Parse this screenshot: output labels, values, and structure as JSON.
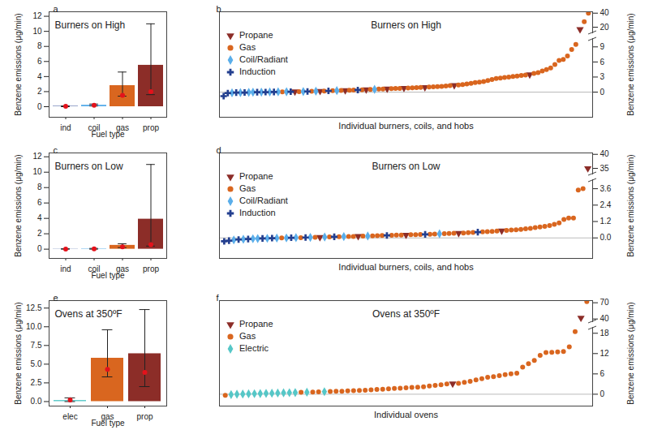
{
  "chart_data": [
    {
      "panel": "a",
      "type": "bar",
      "title": "Burners on High",
      "xlabel": "Fuel type",
      "ylabel": "Benzene emissions (μg/min)",
      "categories": [
        "ind",
        "coil",
        "gas",
        "prop"
      ],
      "values": [
        0.05,
        0.2,
        2.8,
        5.5
      ],
      "colors": [
        "#233f8f",
        "#5aaeea",
        "#d9661f",
        "#8c2d28"
      ],
      "error_low": [
        0,
        0.1,
        1.4,
        1.6
      ],
      "error_high": [
        0.1,
        0.35,
        4.6,
        11.0
      ],
      "point_values": [
        0.05,
        0.2,
        1.5,
        2.0
      ],
      "point_color": "#e3121b",
      "ylim": [
        -1.4,
        12.6
      ],
      "yticks": [
        0,
        2,
        4,
        6,
        8,
        10,
        12
      ]
    },
    {
      "panel": "b",
      "type": "scatter",
      "title": "Burners on High",
      "xlabel": "Individual burners, coils, and hobs",
      "ylabel": "Benzene emissions (μg/min)",
      "xlim": [
        0,
        89
      ],
      "tick_labels": "y",
      "legend": "upper left",
      "reference_line": 0,
      "y_segments": [
        {
          "ylim": [
            -5,
            10.5
          ],
          "yticks": [
            0,
            3,
            6,
            9
          ]
        },
        {
          "ylim": [
            12,
            42
          ],
          "yticks": [
            20,
            40
          ]
        }
      ],
      "series": [
        {
          "name": "Propane",
          "color": "#8c2d28",
          "marker": "triangle_down",
          "x": [
            18,
            24,
            30,
            35,
            40,
            44,
            49,
            56,
            74,
            86
          ],
          "values": [
            0.1,
            0.2,
            0.35,
            0.5,
            0.65,
            0.8,
            0.95,
            1.35,
            3.5,
            17
          ]
        },
        {
          "name": "Gas",
          "color": "#d9661f",
          "marker": "circle",
          "x": [
            15,
            19,
            22,
            25,
            27,
            29,
            31,
            32,
            34,
            36,
            38,
            39,
            41,
            42,
            43,
            45,
            46,
            47,
            48,
            50,
            51,
            52,
            53,
            54,
            55,
            57,
            58,
            59,
            60,
            61,
            62,
            63,
            64,
            65,
            66,
            67,
            68,
            69,
            70,
            71,
            72,
            73,
            75,
            76,
            77,
            78,
            79,
            80,
            81,
            82,
            83,
            84,
            85,
            87,
            88
          ],
          "values": [
            0.05,
            0.1,
            0.15,
            0.22,
            0.28,
            0.32,
            0.38,
            0.4,
            0.45,
            0.52,
            0.6,
            0.62,
            0.7,
            0.72,
            0.75,
            0.82,
            0.85,
            0.9,
            0.92,
            1.0,
            1.05,
            1.1,
            1.15,
            1.2,
            1.3,
            1.4,
            1.5,
            1.6,
            1.75,
            1.9,
            2.0,
            2.1,
            2.3,
            2.5,
            2.7,
            2.8,
            2.9,
            3.0,
            3.1,
            3.2,
            3.3,
            3.4,
            3.7,
            3.9,
            4.2,
            4.5,
            4.8,
            5.5,
            6.3,
            6.5,
            7.2,
            8.5,
            9.5,
            28,
            40
          ]
        },
        {
          "name": "Coil/Radiant",
          "color": "#5aaeea",
          "marker": "diamond",
          "x": [
            3,
            5,
            7,
            8,
            10,
            12,
            14,
            16,
            20,
            23,
            28,
            37
          ],
          "values": [
            -0.15,
            -0.1,
            -0.05,
            -0.03,
            0.0,
            0.02,
            0.05,
            0.07,
            0.12,
            0.17,
            0.3,
            0.55
          ]
        },
        {
          "name": "Induction",
          "color": "#233f8f",
          "marker": "plus",
          "x": [
            1,
            2,
            4,
            6,
            9,
            11,
            13,
            17,
            21,
            26,
            33
          ],
          "values": [
            -0.8,
            -0.2,
            -0.1,
            -0.08,
            -0.02,
            0.0,
            0.03,
            0.08,
            0.13,
            0.25,
            0.42
          ]
        }
      ]
    },
    {
      "panel": "c",
      "type": "bar",
      "title": "Burners on Low",
      "xlabel": "Fuel type",
      "ylabel": "Benzene emissions (μg/min)",
      "categories": [
        "ind",
        "coil",
        "gas",
        "prop"
      ],
      "values": [
        0.02,
        0.05,
        0.5,
        3.9
      ],
      "colors": [
        "#233f8f",
        "#5aaeea",
        "#d9661f",
        "#8c2d28"
      ],
      "error_low": [
        0,
        0,
        0.2,
        0.4
      ],
      "error_high": [
        0.05,
        0.1,
        0.7,
        11.0
      ],
      "point_values": [
        0.02,
        0.03,
        0.3,
        0.6
      ],
      "point_color": "#e3121b",
      "ylim": [
        -1.2,
        12.5
      ],
      "yticks": [
        0,
        2,
        4,
        6,
        8,
        10,
        12
      ]
    },
    {
      "panel": "d",
      "type": "scatter",
      "title": "Burners on Low",
      "xlabel": "Individual burners, coils, and hobs",
      "ylabel": "Benzene emissions (μg/min)",
      "xlim": [
        0,
        78
      ],
      "tick_labels": "y",
      "legend": "upper left",
      "reference_line": 0,
      "y_segments": [
        {
          "ylim": [
            -1.5,
            4.2
          ],
          "yticks": [
            {
              "value": 0,
              "label": "0.0"
            },
            1.2,
            2.4,
            3.6
          ]
        },
        {
          "ylim": [
            33,
            40.5
          ],
          "yticks": [
            35,
            40
          ]
        }
      ],
      "series": [
        {
          "name": "Propane",
          "color": "#8c2d28",
          "marker": "triangle_down",
          "x": [
            21,
            29,
            39,
            50,
            59,
            77
          ],
          "values": [
            0.05,
            0.12,
            0.22,
            0.35,
            0.52,
            35
          ]
        },
        {
          "name": "Gas",
          "color": "#d9661f",
          "marker": "circle",
          "x": [
            13,
            17,
            20,
            23,
            25,
            27,
            28,
            30,
            32,
            33,
            34,
            36,
            37,
            38,
            40,
            41,
            42,
            44,
            45,
            47,
            48,
            49,
            51,
            52,
            53,
            55,
            56,
            57,
            58,
            60,
            61,
            62,
            63,
            64,
            65,
            66,
            67,
            68,
            69,
            70,
            71,
            72,
            73,
            74,
            75,
            76
          ],
          "values": [
            0.0,
            0.02,
            0.05,
            0.07,
            0.09,
            0.1,
            0.11,
            0.13,
            0.15,
            0.16,
            0.17,
            0.19,
            0.2,
            0.21,
            0.23,
            0.24,
            0.25,
            0.27,
            0.28,
            0.31,
            0.32,
            0.34,
            0.36,
            0.38,
            0.4,
            0.44,
            0.46,
            0.48,
            0.5,
            0.55,
            0.58,
            0.6,
            0.63,
            0.66,
            0.7,
            0.75,
            0.8,
            0.85,
            0.9,
            1.0,
            1.1,
            1.35,
            1.45,
            1.45,
            3.5,
            3.6
          ]
        },
        {
          "name": "Coil/Radiant",
          "color": "#5aaeea",
          "marker": "diamond",
          "x": [
            3,
            5,
            7,
            8,
            10,
            12,
            14,
            16,
            19,
            22,
            26,
            31,
            46
          ],
          "values": [
            -0.15,
            -0.1,
            -0.06,
            -0.05,
            -0.03,
            -0.01,
            0.0,
            0.02,
            0.04,
            0.06,
            0.1,
            0.14,
            0.3
          ]
        },
        {
          "name": "Induction",
          "color": "#233f8f",
          "marker": "plus",
          "x": [
            1,
            2,
            4,
            6,
            9,
            11,
            15,
            18,
            24,
            35,
            43,
            54
          ],
          "values": [
            -0.25,
            -0.2,
            -0.12,
            -0.08,
            -0.04,
            -0.02,
            0.01,
            0.03,
            0.08,
            0.18,
            0.26,
            0.42
          ]
        }
      ]
    },
    {
      "panel": "e",
      "type": "bar",
      "title": "Ovens at 350ºF",
      "xlabel": "Fuel type",
      "ylabel": "Benzene emissions (μg/min)",
      "categories": [
        "elec",
        "gas",
        "prop"
      ],
      "values": [
        0.15,
        5.8,
        6.4
      ],
      "colors": [
        "#56c7c7",
        "#d9661f",
        "#8c2d28"
      ],
      "error_low": [
        0,
        3.3,
        2.0
      ],
      "error_high": [
        0.5,
        9.6,
        12.3
      ],
      "point_values": [
        0.2,
        4.3,
        3.9
      ],
      "point_color": "#e3121b",
      "ylim": [
        -0.6,
        13.5
      ],
      "yticks": [
        {
          "value": 0,
          "label": "0.0"
        },
        2.5,
        {
          "value": 5,
          "label": "5.0"
        },
        7.5,
        {
          "value": 10,
          "label": "10.0"
        },
        12.5
      ]
    },
    {
      "panel": "f",
      "type": "scatter",
      "title": "Ovens at 350ºF",
      "xlabel": "Individual ovens",
      "ylabel": "Benzene emissions (μg/min)",
      "xlim": [
        0,
        64
      ],
      "tick_labels": "y",
      "legend": "upper left",
      "reference_line": 0,
      "y_segments": [
        {
          "ylim": [
            -3.5,
            19.5
          ],
          "yticks": [
            0,
            6,
            12,
            18
          ]
        },
        {
          "ylim": [
            35,
            74
          ],
          "yticks": [
            40,
            70
          ]
        }
      ],
      "series": [
        {
          "name": "Propane",
          "color": "#8c2d28",
          "marker": "triangle_down",
          "x": [
            40,
            62
          ],
          "values": [
            3.1,
            42
          ]
        },
        {
          "name": "Gas",
          "color": "#d9661f",
          "marker": "circle",
          "x": [
            1,
            14,
            16,
            17,
            19,
            20,
            21,
            22,
            23,
            24,
            25,
            26,
            27,
            28,
            29,
            30,
            31,
            32,
            33,
            34,
            35,
            36,
            37,
            38,
            39,
            41,
            42,
            43,
            44,
            45,
            46,
            47,
            48,
            49,
            50,
            51,
            52,
            53,
            54,
            55,
            56,
            57,
            58,
            59,
            60,
            61,
            63
          ],
          "values": [
            -0.3,
            0.55,
            0.65,
            0.7,
            0.8,
            0.85,
            0.9,
            1.0,
            1.05,
            1.1,
            1.2,
            1.3,
            1.4,
            1.5,
            1.6,
            1.7,
            1.8,
            1.9,
            2.0,
            2.1,
            2.2,
            2.4,
            2.6,
            2.8,
            3.0,
            3.2,
            3.5,
            3.8,
            4.2,
            4.6,
            5.0,
            5.2,
            5.5,
            5.8,
            6.0,
            6.2,
            8.0,
            9.0,
            10.0,
            11.5,
            12.3,
            12.4,
            12.5,
            12.6,
            14.0,
            18.5,
            72
          ]
        },
        {
          "name": "Electric",
          "color": "#56c7c7",
          "marker": "diamond",
          "x": [
            2,
            3,
            4,
            5,
            6,
            7,
            8,
            9,
            10,
            11,
            12,
            13,
            15,
            18
          ],
          "values": [
            -0.1,
            0.0,
            0.05,
            0.1,
            0.15,
            0.2,
            0.25,
            0.3,
            0.35,
            0.4,
            0.45,
            0.5,
            0.6,
            0.75
          ]
        }
      ]
    }
  ]
}
